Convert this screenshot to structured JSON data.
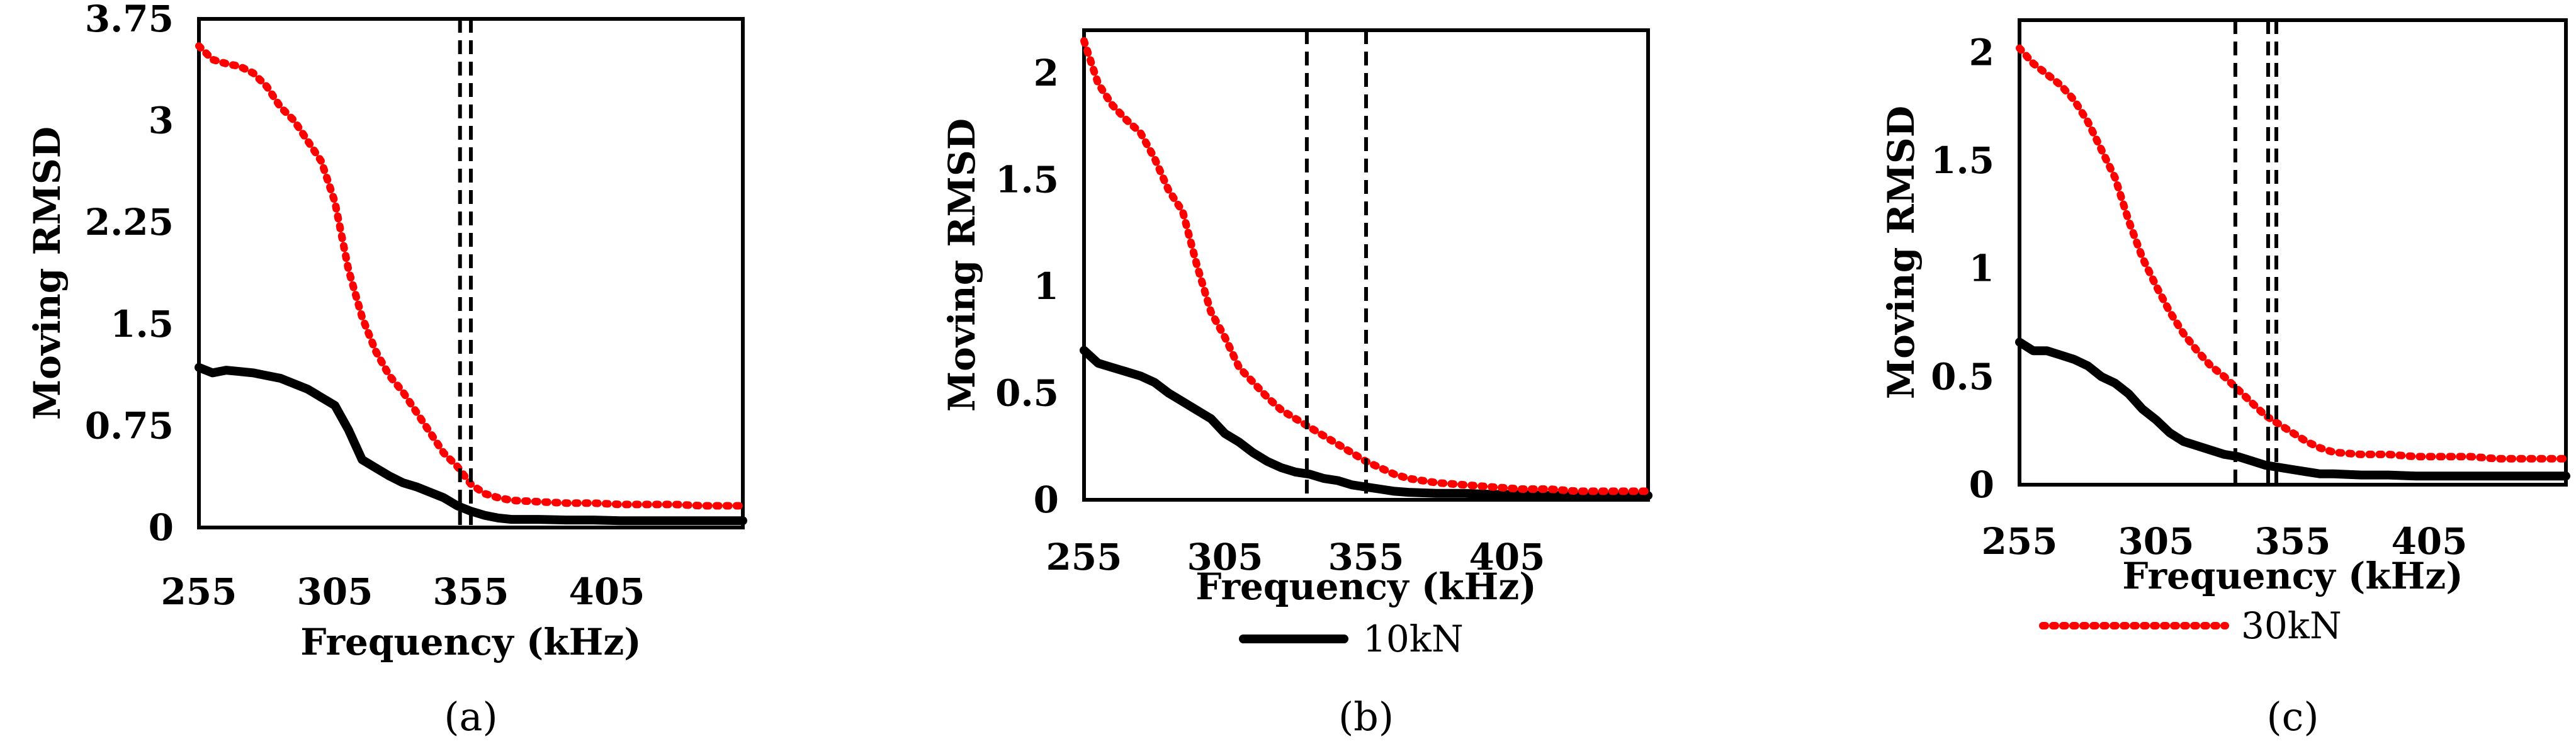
{
  "chart_data": [
    {
      "type": "line",
      "caption": "(a)",
      "xlabel": "Frequency (kHz)",
      "ylabel": "Moving RMSD",
      "xlim": [
        255,
        455
      ],
      "ylim": [
        0,
        3.75
      ],
      "xticks": [
        255,
        305,
        355,
        405
      ],
      "yticks": [
        "0",
        "0.75",
        "1.5",
        "2.25",
        "3",
        "3.75"
      ],
      "reference_lines_x": [
        351,
        355
      ],
      "series": [
        {
          "label": "10kN",
          "x": [
            255,
            260,
            265,
            270,
            275,
            280,
            285,
            290,
            295,
            300,
            305,
            310,
            315,
            320,
            325,
            330,
            335,
            340,
            345,
            350,
            355,
            360,
            365,
            370,
            380,
            390,
            400,
            410,
            420,
            430,
            440,
            450,
            455
          ],
          "y": [
            1.18,
            1.14,
            1.16,
            1.15,
            1.14,
            1.12,
            1.1,
            1.06,
            1.02,
            0.96,
            0.9,
            0.72,
            0.5,
            0.44,
            0.38,
            0.33,
            0.3,
            0.26,
            0.22,
            0.16,
            0.12,
            0.09,
            0.07,
            0.06,
            0.06,
            0.055,
            0.055,
            0.05,
            0.05,
            0.05,
            0.05,
            0.05,
            0.05
          ]
        },
        {
          "label": "30kN",
          "x": [
            255,
            260,
            265,
            270,
            275,
            280,
            285,
            290,
            295,
            300,
            305,
            310,
            315,
            320,
            325,
            330,
            335,
            340,
            345,
            350,
            355,
            360,
            365,
            370,
            380,
            390,
            400,
            410,
            420,
            430,
            440,
            450,
            455
          ],
          "y": [
            3.55,
            3.45,
            3.42,
            3.4,
            3.35,
            3.25,
            3.1,
            3.0,
            2.85,
            2.7,
            2.4,
            1.9,
            1.55,
            1.3,
            1.12,
            1.0,
            0.85,
            0.7,
            0.55,
            0.45,
            0.32,
            0.25,
            0.22,
            0.2,
            0.19,
            0.18,
            0.18,
            0.17,
            0.17,
            0.17,
            0.16,
            0.16,
            0.16
          ]
        }
      ]
    },
    {
      "type": "line",
      "caption": "(b)",
      "xlabel": "Frequency (kHz)",
      "ylabel": "Moving RMSD",
      "xlim": [
        255,
        455
      ],
      "ylim": [
        0,
        2.2
      ],
      "xticks": [
        255,
        305,
        355,
        405
      ],
      "yticks": [
        "0",
        "0.5",
        "1",
        "1.5",
        "2"
      ],
      "reference_lines_x": [
        334,
        355
      ],
      "legend": "bottom",
      "series": [
        {
          "label": "10kN",
          "x": [
            255,
            260,
            265,
            270,
            275,
            280,
            285,
            290,
            295,
            300,
            305,
            310,
            315,
            320,
            325,
            330,
            335,
            340,
            345,
            350,
            355,
            360,
            365,
            370,
            380,
            390,
            400,
            410,
            420,
            430,
            440,
            450,
            455
          ],
          "y": [
            0.7,
            0.64,
            0.62,
            0.6,
            0.58,
            0.55,
            0.5,
            0.46,
            0.42,
            0.38,
            0.31,
            0.27,
            0.22,
            0.18,
            0.15,
            0.13,
            0.12,
            0.1,
            0.09,
            0.07,
            0.06,
            0.05,
            0.04,
            0.035,
            0.03,
            0.03,
            0.025,
            0.025,
            0.02,
            0.02,
            0.02,
            0.02,
            0.02
          ]
        },
        {
          "label": "30kN",
          "x": [
            255,
            260,
            265,
            270,
            275,
            280,
            285,
            290,
            295,
            300,
            305,
            310,
            315,
            320,
            325,
            330,
            335,
            340,
            345,
            350,
            355,
            360,
            365,
            370,
            380,
            390,
            400,
            410,
            420,
            430,
            440,
            450,
            455
          ],
          "y": [
            2.15,
            1.95,
            1.85,
            1.78,
            1.72,
            1.6,
            1.45,
            1.35,
            1.1,
            0.88,
            0.76,
            0.62,
            0.55,
            0.48,
            0.42,
            0.38,
            0.34,
            0.3,
            0.26,
            0.22,
            0.18,
            0.15,
            0.12,
            0.1,
            0.08,
            0.07,
            0.06,
            0.05,
            0.05,
            0.04,
            0.04,
            0.04,
            0.04
          ]
        }
      ]
    },
    {
      "type": "line",
      "caption": "(c)",
      "xlabel": "Frequency (kHz)",
      "ylabel": "Moving RMSD",
      "xlim": [
        255,
        455
      ],
      "ylim": [
        0,
        2.15
      ],
      "xticks": [
        255,
        305,
        355,
        405
      ],
      "yticks": [
        "0",
        "0.5",
        "1",
        "1.5",
        "2"
      ],
      "reference_lines_x": [
        334,
        346,
        349
      ],
      "legend": "bottom",
      "series": [
        {
          "label": "10kN",
          "x": [
            255,
            260,
            265,
            270,
            275,
            280,
            285,
            290,
            295,
            300,
            305,
            310,
            315,
            320,
            325,
            330,
            335,
            340,
            345,
            350,
            355,
            360,
            365,
            370,
            380,
            390,
            400,
            410,
            420,
            430,
            440,
            450,
            455
          ],
          "y": [
            0.66,
            0.62,
            0.62,
            0.6,
            0.58,
            0.55,
            0.5,
            0.47,
            0.42,
            0.35,
            0.3,
            0.24,
            0.2,
            0.18,
            0.16,
            0.14,
            0.13,
            0.11,
            0.09,
            0.08,
            0.07,
            0.06,
            0.05,
            0.05,
            0.045,
            0.045,
            0.04,
            0.04,
            0.04,
            0.04,
            0.04,
            0.04,
            0.04
          ]
        },
        {
          "label": "30kN",
          "x": [
            255,
            260,
            265,
            270,
            275,
            280,
            285,
            290,
            295,
            300,
            305,
            310,
            315,
            320,
            325,
            330,
            335,
            340,
            345,
            350,
            355,
            360,
            365,
            370,
            380,
            390,
            400,
            410,
            420,
            430,
            440,
            450,
            455
          ],
          "y": [
            2.02,
            1.95,
            1.9,
            1.85,
            1.78,
            1.68,
            1.55,
            1.42,
            1.22,
            1.05,
            0.92,
            0.8,
            0.7,
            0.62,
            0.55,
            0.5,
            0.44,
            0.38,
            0.32,
            0.28,
            0.24,
            0.2,
            0.17,
            0.15,
            0.14,
            0.14,
            0.13,
            0.13,
            0.13,
            0.12,
            0.12,
            0.12,
            0.12
          ]
        }
      ]
    }
  ],
  "legend": [
    {
      "label": "10kN",
      "color": "#000000",
      "style": "solid"
    },
    {
      "label": "30kN",
      "color": "#ff0000",
      "style": "dotted"
    }
  ],
  "colors": {
    "series_10kN": "#000000",
    "series_30kN": "#ff0000",
    "reference_line": "#000000"
  }
}
